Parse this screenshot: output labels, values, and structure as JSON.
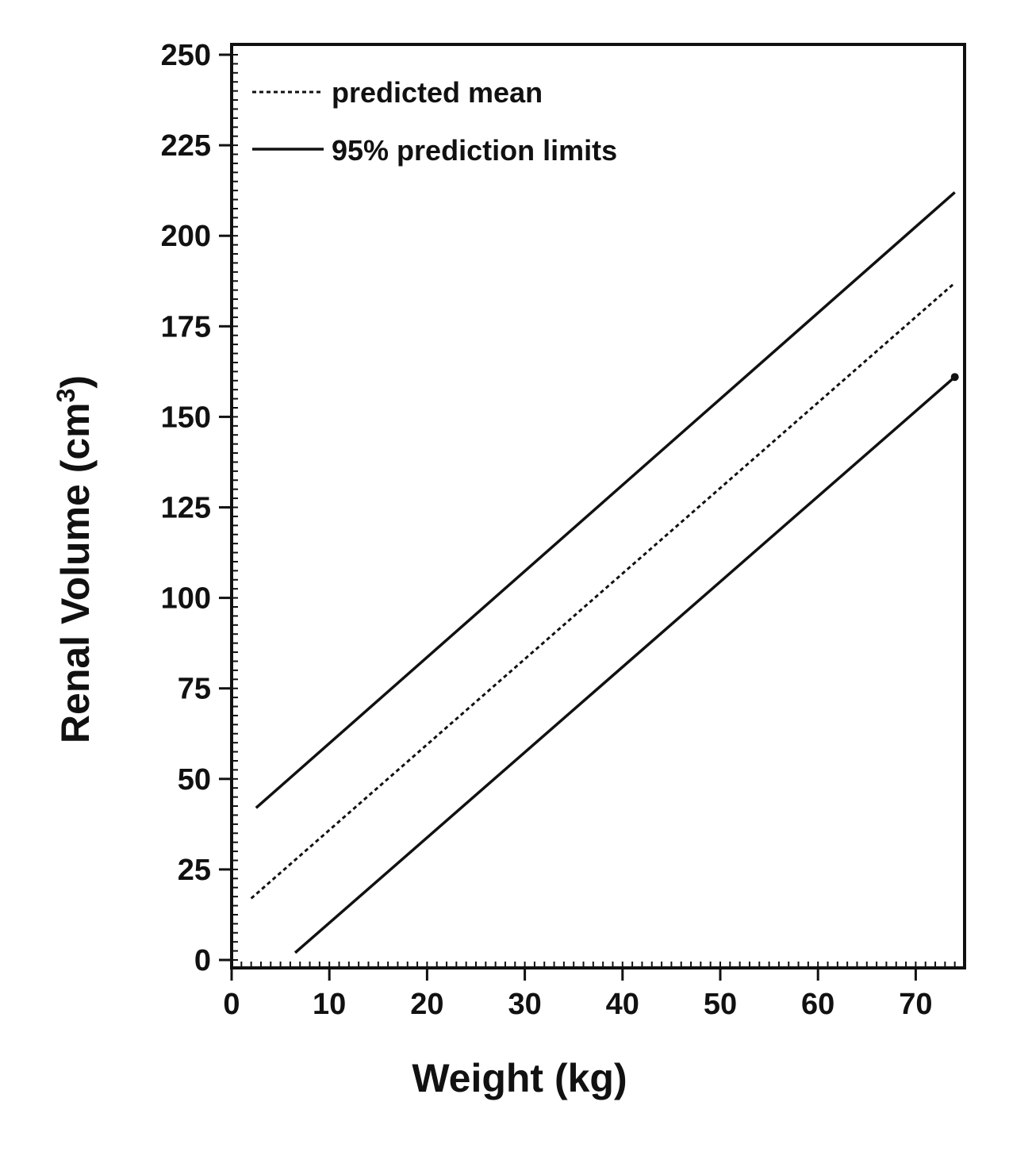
{
  "chart_data": {
    "type": "line",
    "xlabel": "Weight (kg)",
    "ylabel": "Renal Volume (cm³)",
    "ylabel_base": "Renal Volume (cm",
    "ylabel_sup": "3",
    "ylabel_close": ")",
    "xlim": [
      0,
      75
    ],
    "ylim": [
      0,
      250
    ],
    "x_ticks": [
      0,
      10,
      20,
      30,
      40,
      50,
      60,
      70
    ],
    "y_ticks": [
      0,
      25,
      50,
      75,
      100,
      125,
      150,
      175,
      200,
      225,
      250
    ],
    "x_tick_labels": [
      "0",
      "10",
      "20",
      "30",
      "40",
      "50",
      "60",
      "70"
    ],
    "y_tick_labels": [
      "0",
      "25",
      "50",
      "75",
      "100",
      "125",
      "150",
      "175",
      "200",
      "225",
      "250"
    ],
    "grid": false,
    "legend_position": "top-left",
    "series": [
      {
        "name": "predicted mean",
        "style": "dotted",
        "x": [
          2,
          74
        ],
        "y": [
          17,
          187
        ]
      },
      {
        "name": "95% prediction limits",
        "style": "solid",
        "x": [
          2.5,
          74
        ],
        "y": [
          42,
          212
        ]
      },
      {
        "name": "",
        "style": "solid",
        "x": [
          6.5,
          74
        ],
        "y": [
          2,
          161
        ]
      }
    ],
    "legend": [
      {
        "label": "predicted mean",
        "style": "dotted"
      },
      {
        "label": "95% prediction limits",
        "style": "solid"
      }
    ]
  }
}
